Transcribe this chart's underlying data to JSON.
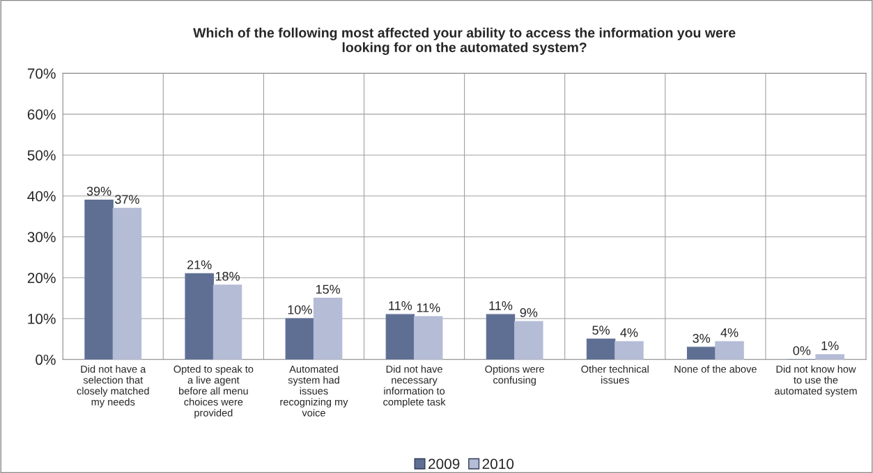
{
  "chart_data": {
    "type": "bar",
    "title": "Which of the following most affected your ability to access the information you were\nlooking for on the automated system?",
    "categories": [
      "Did not have a\nselection that\nclosely matched\nmy needs",
      "Opted to speak to\na live agent\nbefore all menu\nchoices were\nprovided",
      "Automated\nsystem had\nissues\nrecognizing my\nvoice",
      "Did not have\nnecessary\ninformation to\ncomplete task",
      "Options were\nconfusing",
      "Other technical\nissues",
      "None of the above",
      "Did not know how\nto use the\nautomated system"
    ],
    "series": [
      {
        "name": "2009",
        "color": "#5f6f94",
        "values": [
          39,
          21,
          10,
          11,
          11,
          5,
          3,
          0
        ],
        "value_labels": [
          "39%",
          "21%",
          "10%",
          "11%",
          "11%",
          "5%",
          "3%",
          "0%"
        ]
      },
      {
        "name": "2010",
        "color": "#b4bcd6",
        "values": [
          37,
          18.2,
          15,
          10.5,
          9.3,
          4.4,
          4.4,
          1.2
        ],
        "value_labels": [
          "37%",
          "18%",
          "15%",
          "11%",
          "9%",
          "4%",
          "4%",
          "1%"
        ]
      }
    ],
    "ylim": [
      0,
      70
    ],
    "yticks": [
      {
        "value": 0,
        "label": "0%"
      },
      {
        "value": 10,
        "label": "10%"
      },
      {
        "value": 20,
        "label": "20%"
      },
      {
        "value": 30,
        "label": "30%"
      },
      {
        "value": 40,
        "label": "40%"
      },
      {
        "value": 50,
        "label": "50%"
      },
      {
        "value": 60,
        "label": "60%"
      },
      {
        "value": 70,
        "label": "70%"
      }
    ],
    "grid": true,
    "legend": "bottom"
  }
}
